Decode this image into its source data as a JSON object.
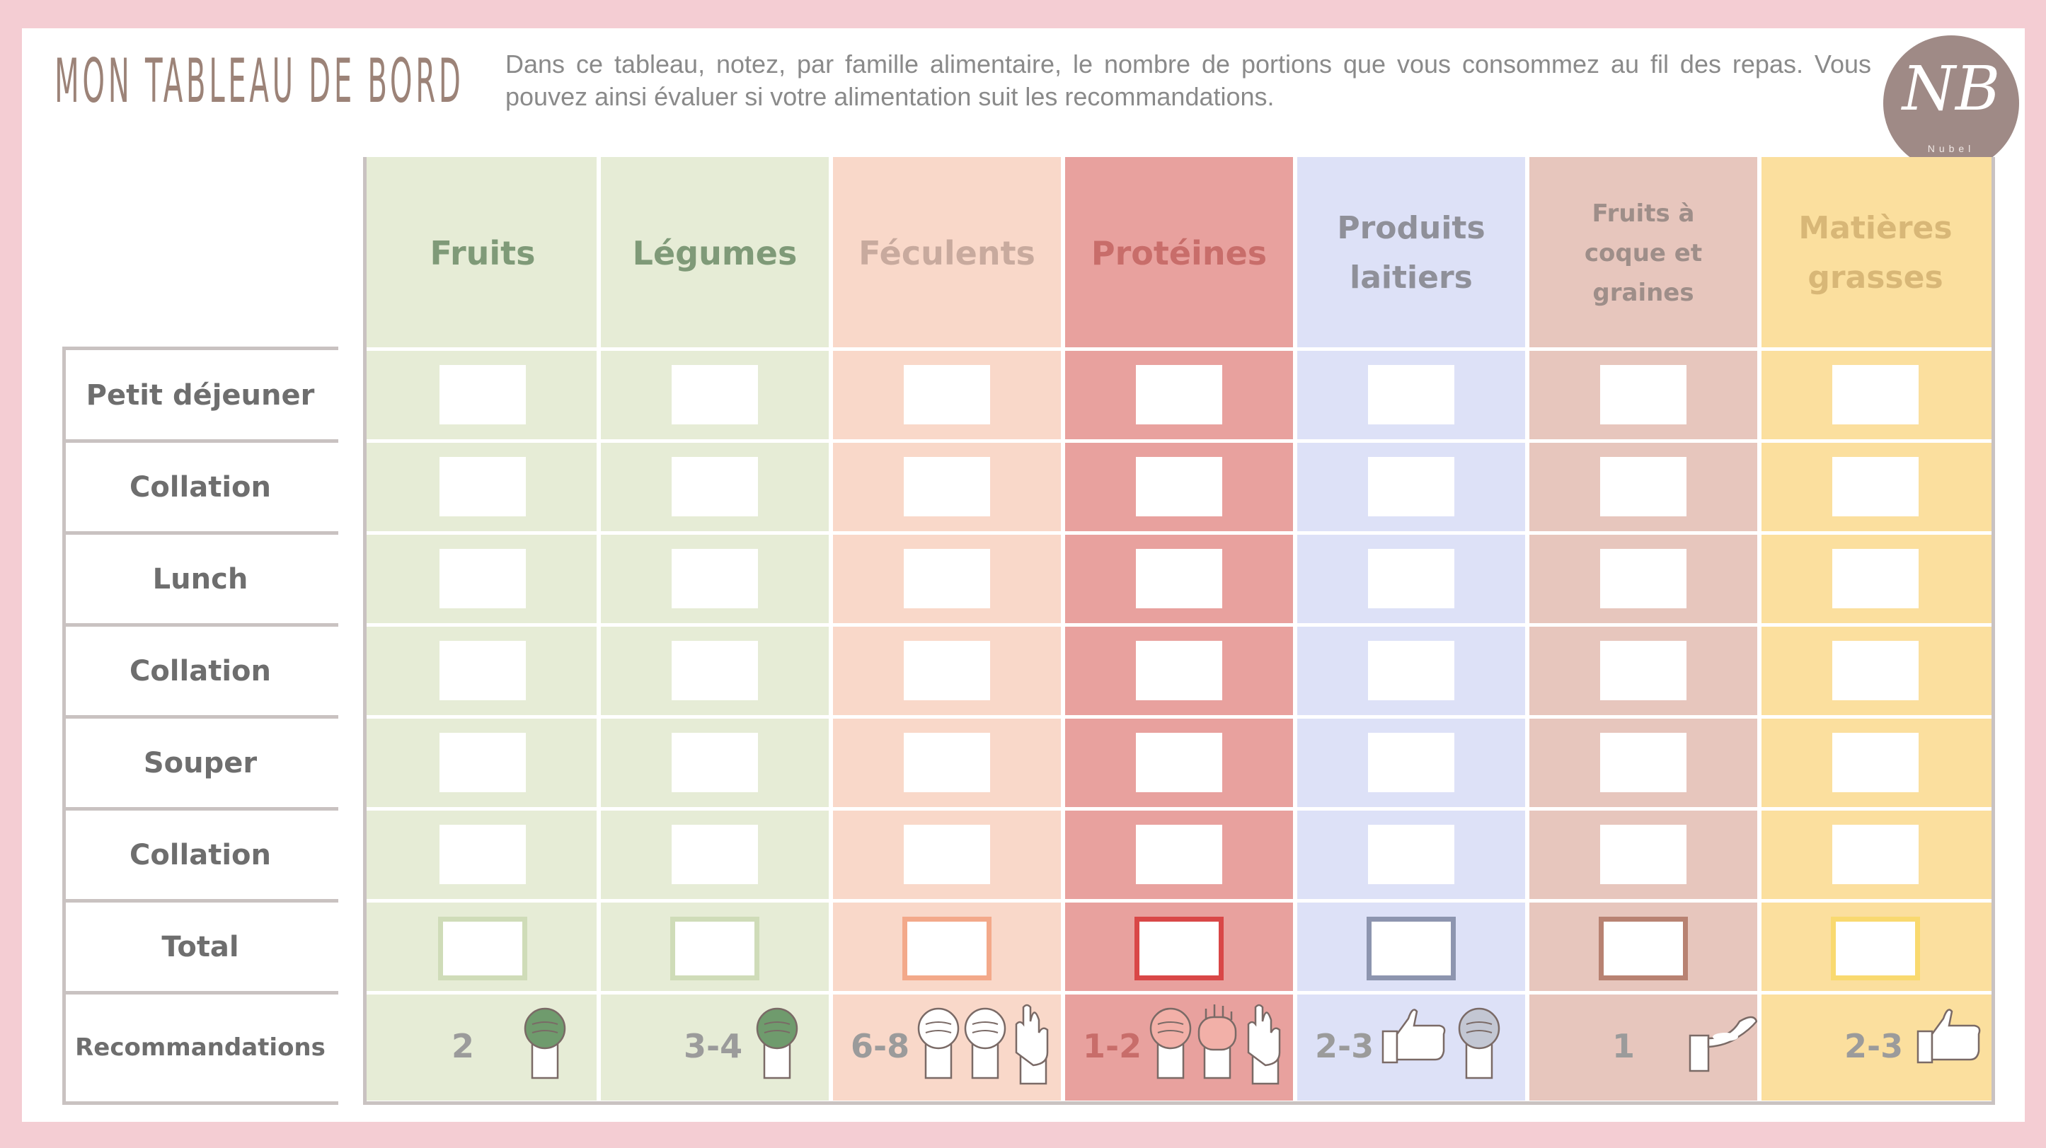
{
  "header": {
    "title": "Mon tableau de bord",
    "intro": "Dans ce tableau, notez, par famille alimentaire, le nombre de portions que vous consommez au fil des repas. Vous pouvez ainsi évaluer si votre alimentation suit les recommandations.",
    "logo_mark": "NB",
    "logo_text": "Nubel"
  },
  "columns": [
    {
      "label": "Fruits",
      "bg": "#e6ecd6",
      "text": "#7f9a78",
      "total_border": "#cfdcb8",
      "reco": "2",
      "hand_icons": [
        "fist-icon"
      ]
    },
    {
      "label": "Légumes",
      "bg": "#e6ecd6",
      "text": "#7f9a78",
      "total_border": "#cfdcb8",
      "reco": "3-4",
      "hand_icons": [
        "fist-icon"
      ]
    },
    {
      "label": "Féculents",
      "bg": "#f9d8c9",
      "text": "#c8aa9e",
      "total_border": "#f3a98a",
      "reco": "6-8",
      "hand_icons": [
        "fist-icon",
        "fist-icon",
        "open-hand-icon"
      ]
    },
    {
      "label": "Protéines",
      "bg": "#e8a19e",
      "text": "#c86d6a",
      "total_border": "#d94747",
      "reco": "1-2",
      "hand_icons": [
        "fist-icon",
        "palm-icon",
        "open-hand-icon"
      ]
    },
    {
      "label": "Produits laitiers",
      "bg": "#dde1f7",
      "text": "#8f9099",
      "total_border": "#8d95af",
      "reco": "2-3",
      "hand_icons": [
        "thumb-icon",
        "fist-icon"
      ]
    },
    {
      "label": "Fruits à coque et graines",
      "bg": "#e7c6bd",
      "text": "#9e8e89",
      "total_border": "#b88272",
      "reco": "1",
      "hand_icons": [
        "cupped-hand-icon"
      ]
    },
    {
      "label": "Matières grasses",
      "bg": "#fbdf9e",
      "text": "#d8b777",
      "total_border": "#f9d96f",
      "reco": "2-3",
      "hand_icons": [
        "thumb-icon"
      ]
    }
  ],
  "rows": [
    "Petit déjeuner",
    "Collation",
    "Lunch",
    "Collation",
    "Souper",
    "Collation",
    "Total",
    "Recommandations"
  ],
  "colors": {
    "frame": "#c9c2c1",
    "accent": "#9c8378"
  }
}
